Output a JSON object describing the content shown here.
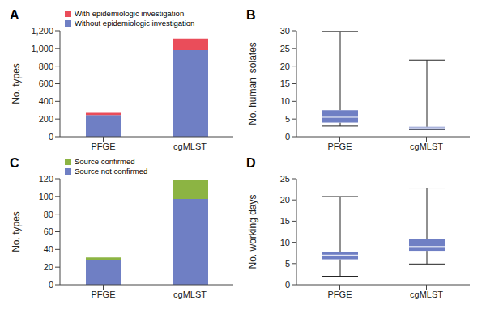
{
  "chart_data": [
    {
      "type": "bar",
      "title": "A",
      "stacked": true,
      "legend": "upper left",
      "categories": [
        "PFGE",
        "cgMLST"
      ],
      "ylabel": "No. types",
      "ylim": [
        0,
        1200
      ],
      "yticks": [
        0,
        200,
        400,
        600,
        800,
        {
          "value": 1000,
          "label": "1,000"
        },
        {
          "value": 1200,
          "label": "1,200"
        }
      ],
      "series": [
        {
          "name": "Without epidemiologic investigation",
          "color": "#6f7fc4",
          "values": [
            245,
            980
          ]
        },
        {
          "name": "With epidemiologic investigation",
          "color": "#ea4d5a",
          "values": [
            25,
            130
          ]
        }
      ]
    },
    {
      "type": "box",
      "title": "B",
      "categories": [
        "PFGE",
        "cgMLST"
      ],
      "ylabel": "No. human isolates",
      "ylim": [
        0,
        30
      ],
      "yticks": [
        0,
        5,
        10,
        15,
        20,
        25,
        30
      ],
      "color": "#6f7fc4",
      "stats": [
        {
          "min": 3,
          "q1": 4,
          "median": 5.5,
          "q3": 7.5,
          "max": 29.8
        },
        {
          "min": 2,
          "q1": 2,
          "median": 2.5,
          "q3": 2.8,
          "max": 21.7
        }
      ]
    },
    {
      "type": "bar",
      "title": "C",
      "stacked": true,
      "legend": "upper left",
      "categories": [
        "PFGE",
        "cgMLST"
      ],
      "ylabel": "No. types",
      "ylim": [
        0,
        120
      ],
      "yticks": [
        0,
        20,
        40,
        60,
        80,
        100,
        120
      ],
      "series": [
        {
          "name": "Source not confirmed",
          "color": "#6f7fc4",
          "values": [
            28,
            97
          ]
        },
        {
          "name": "Source confirmed",
          "color": "#8cb443",
          "values": [
            3,
            22
          ]
        }
      ]
    },
    {
      "type": "box",
      "title": "D",
      "categories": [
        "PFGE",
        "cgMLST"
      ],
      "ylabel": "No. working days",
      "ylim": [
        0,
        25
      ],
      "yticks": [
        0,
        5,
        10,
        15,
        20,
        25
      ],
      "color": "#6f7fc4",
      "stats": [
        {
          "min": 2,
          "q1": 6,
          "median": 7,
          "q3": 7.8,
          "max": 20.8
        },
        {
          "min": 4.9,
          "q1": 8,
          "median": 9,
          "q3": 10.8,
          "max": 22.8
        }
      ]
    }
  ]
}
